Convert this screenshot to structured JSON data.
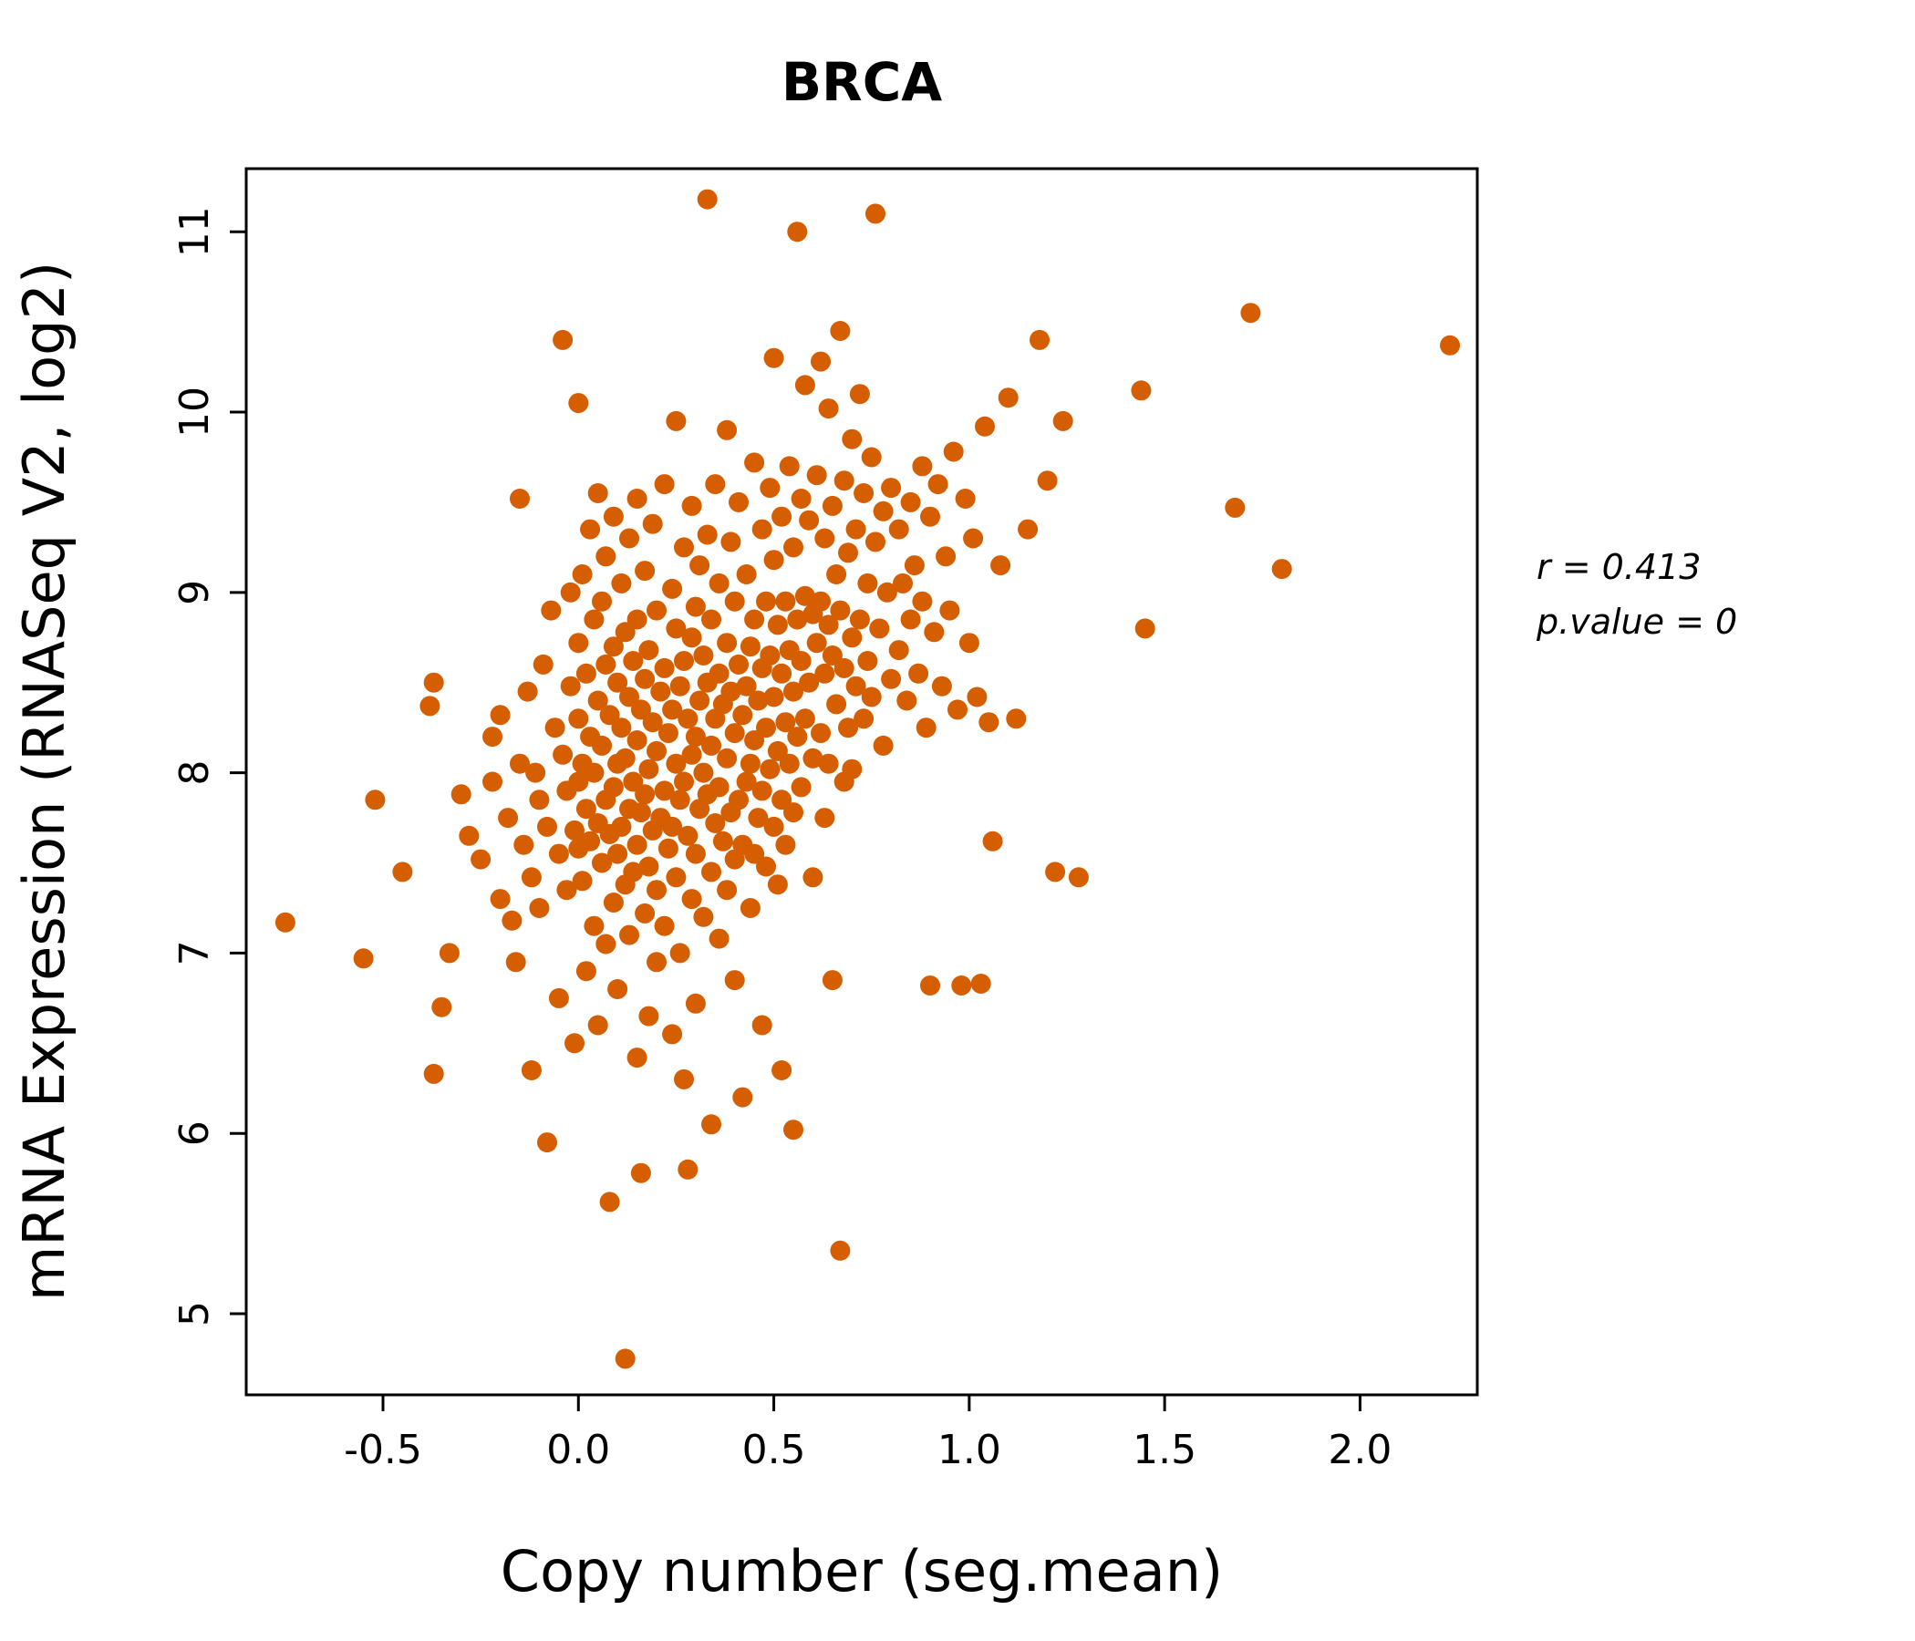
{
  "chart_data": {
    "type": "scatter",
    "title": "BRCA",
    "xlabel": "Copy number (seg.mean)",
    "ylabel": "mRNA Expression (RNASeq V2, log2)",
    "xlim": [
      -0.85,
      2.3
    ],
    "ylim": [
      4.55,
      11.35
    ],
    "x_ticks": [
      -0.5,
      0.0,
      0.5,
      1.0,
      1.5,
      2.0
    ],
    "x_tick_labels": [
      "-0.5",
      "0.0",
      "0.5",
      "1.0",
      "1.5",
      "2.0"
    ],
    "y_ticks": [
      5,
      6,
      7,
      8,
      9,
      10,
      11
    ],
    "y_tick_labels": [
      "5",
      "6",
      "7",
      "8",
      "9",
      "10",
      "11"
    ],
    "grid": false,
    "legend": "none",
    "point_color": "#D55E00",
    "title_color": "#D55E00",
    "annotations": [
      "r = 0.413",
      "p.value = 0"
    ],
    "stats": {
      "r": 0.413,
      "p_value": 0
    },
    "points": [
      [
        -0.75,
        7.17
      ],
      [
        -0.55,
        6.97
      ],
      [
        -0.52,
        7.85
      ],
      [
        -0.45,
        7.45
      ],
      [
        -0.38,
        8.37
      ],
      [
        -0.37,
        8.5
      ],
      [
        -0.37,
        6.33
      ],
      [
        -0.35,
        6.7
      ],
      [
        -0.33,
        7.0
      ],
      [
        -0.3,
        7.88
      ],
      [
        -0.28,
        7.65
      ],
      [
        -0.25,
        7.52
      ],
      [
        -0.22,
        8.2
      ],
      [
        -0.22,
        7.95
      ],
      [
        -0.2,
        8.32
      ],
      [
        -0.2,
        7.3
      ],
      [
        -0.18,
        7.75
      ],
      [
        -0.17,
        7.18
      ],
      [
        -0.16,
        6.95
      ],
      [
        -0.15,
        9.52
      ],
      [
        -0.15,
        8.05
      ],
      [
        -0.14,
        7.6
      ],
      [
        -0.13,
        8.45
      ],
      [
        -0.12,
        7.42
      ],
      [
        -0.12,
        6.35
      ],
      [
        -0.11,
        8.0
      ],
      [
        -0.1,
        7.85
      ],
      [
        -0.1,
        7.25
      ],
      [
        -0.09,
        8.6
      ],
      [
        -0.08,
        7.7
      ],
      [
        -0.08,
        5.95
      ],
      [
        -0.07,
        8.9
      ],
      [
        -0.06,
        8.25
      ],
      [
        -0.05,
        7.55
      ],
      [
        -0.05,
        6.75
      ],
      [
        -0.04,
        10.4
      ],
      [
        -0.04,
        8.1
      ],
      [
        -0.03,
        7.9
      ],
      [
        -0.03,
        7.35
      ],
      [
        -0.02,
        9.0
      ],
      [
        -0.02,
        8.48
      ],
      [
        -0.01,
        7.68
      ],
      [
        -0.01,
        6.5
      ],
      [
        0.0,
        10.05
      ],
      [
        0.0,
        8.72
      ],
      [
        0.0,
        8.3
      ],
      [
        0.0,
        7.95
      ],
      [
        0.0,
        7.58
      ],
      [
        0.01,
        9.1
      ],
      [
        0.01,
        8.05
      ],
      [
        0.01,
        7.4
      ],
      [
        0.02,
        8.55
      ],
      [
        0.02,
        7.8
      ],
      [
        0.02,
        6.9
      ],
      [
        0.03,
        9.35
      ],
      [
        0.03,
        8.2
      ],
      [
        0.03,
        7.62
      ],
      [
        0.04,
        8.85
      ],
      [
        0.04,
        8.0
      ],
      [
        0.04,
        7.15
      ],
      [
        0.05,
        9.55
      ],
      [
        0.05,
        8.4
      ],
      [
        0.05,
        7.72
      ],
      [
        0.05,
        6.6
      ],
      [
        0.06,
        8.95
      ],
      [
        0.06,
        8.15
      ],
      [
        0.06,
        7.5
      ],
      [
        0.07,
        9.2
      ],
      [
        0.07,
        8.6
      ],
      [
        0.07,
        7.85
      ],
      [
        0.07,
        7.05
      ],
      [
        0.08,
        8.32
      ],
      [
        0.08,
        7.66
      ],
      [
        0.08,
        5.62
      ],
      [
        0.09,
        9.42
      ],
      [
        0.09,
        8.7
      ],
      [
        0.09,
        7.92
      ],
      [
        0.09,
        7.28
      ],
      [
        0.1,
        8.5
      ],
      [
        0.1,
        8.05
      ],
      [
        0.1,
        7.55
      ],
      [
        0.1,
        6.8
      ],
      [
        0.11,
        9.05
      ],
      [
        0.11,
        8.25
      ],
      [
        0.11,
        7.7
      ],
      [
        0.12,
        8.78
      ],
      [
        0.12,
        8.08
      ],
      [
        0.12,
        7.38
      ],
      [
        0.12,
        4.75
      ],
      [
        0.13,
        9.3
      ],
      [
        0.13,
        8.42
      ],
      [
        0.13,
        7.8
      ],
      [
        0.13,
        7.1
      ],
      [
        0.14,
        8.62
      ],
      [
        0.14,
        7.95
      ],
      [
        0.14,
        7.45
      ],
      [
        0.15,
        9.52
      ],
      [
        0.15,
        8.85
      ],
      [
        0.15,
        8.18
      ],
      [
        0.15,
        7.6
      ],
      [
        0.15,
        6.42
      ],
      [
        0.16,
        8.35
      ],
      [
        0.16,
        7.78
      ],
      [
        0.16,
        5.78
      ],
      [
        0.17,
        9.12
      ],
      [
        0.17,
        8.52
      ],
      [
        0.17,
        7.88
      ],
      [
        0.17,
        7.22
      ],
      [
        0.18,
        8.68
      ],
      [
        0.18,
        8.02
      ],
      [
        0.18,
        7.48
      ],
      [
        0.18,
        6.65
      ],
      [
        0.19,
        9.38
      ],
      [
        0.19,
        8.28
      ],
      [
        0.19,
        7.68
      ],
      [
        0.2,
        8.9
      ],
      [
        0.2,
        8.12
      ],
      [
        0.2,
        7.35
      ],
      [
        0.2,
        6.95
      ],
      [
        0.21,
        8.45
      ],
      [
        0.21,
        7.75
      ],
      [
        0.22,
        9.6
      ],
      [
        0.22,
        8.58
      ],
      [
        0.22,
        7.9
      ],
      [
        0.22,
        7.15
      ],
      [
        0.23,
        8.22
      ],
      [
        0.23,
        7.58
      ],
      [
        0.24,
        9.02
      ],
      [
        0.24,
        8.35
      ],
      [
        0.24,
        7.7
      ],
      [
        0.24,
        6.55
      ],
      [
        0.25,
        9.95
      ],
      [
        0.25,
        8.8
      ],
      [
        0.25,
        8.05
      ],
      [
        0.25,
        7.42
      ],
      [
        0.26,
        8.48
      ],
      [
        0.26,
        7.85
      ],
      [
        0.26,
        7.0
      ],
      [
        0.27,
        9.25
      ],
      [
        0.27,
        8.62
      ],
      [
        0.27,
        7.95
      ],
      [
        0.27,
        6.3
      ],
      [
        0.28,
        8.3
      ],
      [
        0.28,
        7.65
      ],
      [
        0.28,
        5.8
      ],
      [
        0.29,
        9.48
      ],
      [
        0.29,
        8.75
      ],
      [
        0.29,
        8.1
      ],
      [
        0.29,
        7.3
      ],
      [
        0.3,
        8.92
      ],
      [
        0.3,
        8.2
      ],
      [
        0.3,
        7.55
      ],
      [
        0.3,
        6.72
      ],
      [
        0.31,
        9.15
      ],
      [
        0.31,
        8.4
      ],
      [
        0.31,
        7.8
      ],
      [
        0.32,
        8.65
      ],
      [
        0.32,
        8.0
      ],
      [
        0.32,
        7.2
      ],
      [
        0.33,
        11.18
      ],
      [
        0.33,
        9.32
      ],
      [
        0.33,
        8.5
      ],
      [
        0.33,
        7.88
      ],
      [
        0.34,
        8.85
      ],
      [
        0.34,
        8.15
      ],
      [
        0.34,
        7.45
      ],
      [
        0.34,
        6.05
      ],
      [
        0.35,
        9.6
      ],
      [
        0.35,
        8.3
      ],
      [
        0.35,
        7.72
      ],
      [
        0.36,
        9.05
      ],
      [
        0.36,
        8.55
      ],
      [
        0.36,
        7.92
      ],
      [
        0.36,
        7.08
      ],
      [
        0.37,
        8.38
      ],
      [
        0.37,
        7.62
      ],
      [
        0.38,
        9.9
      ],
      [
        0.38,
        8.72
      ],
      [
        0.38,
        8.08
      ],
      [
        0.38,
        7.35
      ],
      [
        0.39,
        9.28
      ],
      [
        0.39,
        8.45
      ],
      [
        0.39,
        7.78
      ],
      [
        0.4,
        8.95
      ],
      [
        0.4,
        8.22
      ],
      [
        0.4,
        7.52
      ],
      [
        0.4,
        6.85
      ],
      [
        0.41,
        9.5
      ],
      [
        0.41,
        8.6
      ],
      [
        0.41,
        7.85
      ],
      [
        0.42,
        8.32
      ],
      [
        0.42,
        7.6
      ],
      [
        0.42,
        6.2
      ],
      [
        0.43,
        9.1
      ],
      [
        0.43,
        8.48
      ],
      [
        0.43,
        7.95
      ],
      [
        0.44,
        8.7
      ],
      [
        0.44,
        8.05
      ],
      [
        0.44,
        7.25
      ],
      [
        0.45,
        9.72
      ],
      [
        0.45,
        8.85
      ],
      [
        0.45,
        8.18
      ],
      [
        0.45,
        7.55
      ],
      [
        0.46,
        8.4
      ],
      [
        0.46,
        7.75
      ],
      [
        0.47,
        9.35
      ],
      [
        0.47,
        8.58
      ],
      [
        0.47,
        7.9
      ],
      [
        0.47,
        6.6
      ],
      [
        0.48,
        8.95
      ],
      [
        0.48,
        8.25
      ],
      [
        0.48,
        7.48
      ],
      [
        0.49,
        9.58
      ],
      [
        0.49,
        8.65
      ],
      [
        0.49,
        8.02
      ],
      [
        0.5,
        10.3
      ],
      [
        0.5,
        9.18
      ],
      [
        0.5,
        8.42
      ],
      [
        0.5,
        7.7
      ],
      [
        0.51,
        8.82
      ],
      [
        0.51,
        8.12
      ],
      [
        0.51,
        7.38
      ],
      [
        0.52,
        9.42
      ],
      [
        0.52,
        8.55
      ],
      [
        0.52,
        7.85
      ],
      [
        0.52,
        6.35
      ],
      [
        0.53,
        8.95
      ],
      [
        0.53,
        8.28
      ],
      [
        0.53,
        7.6
      ],
      [
        0.54,
        9.7
      ],
      [
        0.54,
        8.68
      ],
      [
        0.54,
        8.05
      ],
      [
        0.55,
        9.25
      ],
      [
        0.55,
        8.45
      ],
      [
        0.55,
        7.78
      ],
      [
        0.55,
        6.02
      ],
      [
        0.56,
        11.0
      ],
      [
        0.56,
        8.85
      ],
      [
        0.56,
        8.2
      ],
      [
        0.57,
        9.52
      ],
      [
        0.57,
        8.62
      ],
      [
        0.57,
        7.92
      ],
      [
        0.58,
        10.15
      ],
      [
        0.58,
        8.98
      ],
      [
        0.58,
        8.3
      ],
      [
        0.59,
        9.4
      ],
      [
        0.59,
        8.5
      ],
      [
        0.6,
        8.88
      ],
      [
        0.6,
        8.08
      ],
      [
        0.6,
        7.42
      ],
      [
        0.61,
        9.65
      ],
      [
        0.61,
        8.72
      ],
      [
        0.62,
        10.28
      ],
      [
        0.62,
        8.95
      ],
      [
        0.62,
        8.22
      ],
      [
        0.63,
        9.3
      ],
      [
        0.63,
        8.55
      ],
      [
        0.63,
        7.75
      ],
      [
        0.64,
        10.02
      ],
      [
        0.64,
        8.82
      ],
      [
        0.64,
        8.05
      ],
      [
        0.65,
        9.48
      ],
      [
        0.65,
        8.65
      ],
      [
        0.65,
        6.85
      ],
      [
        0.66,
        9.1
      ],
      [
        0.66,
        8.38
      ],
      [
        0.67,
        10.45
      ],
      [
        0.67,
        8.9
      ],
      [
        0.67,
        5.35
      ],
      [
        0.68,
        9.62
      ],
      [
        0.68,
        8.58
      ],
      [
        0.68,
        7.95
      ],
      [
        0.69,
        9.22
      ],
      [
        0.69,
        8.25
      ],
      [
        0.7,
        9.85
      ],
      [
        0.7,
        8.75
      ],
      [
        0.7,
        8.02
      ],
      [
        0.71,
        9.35
      ],
      [
        0.71,
        8.48
      ],
      [
        0.72,
        10.1
      ],
      [
        0.72,
        8.85
      ],
      [
        0.73,
        9.55
      ],
      [
        0.73,
        8.3
      ],
      [
        0.74,
        9.05
      ],
      [
        0.74,
        8.62
      ],
      [
        0.75,
        9.75
      ],
      [
        0.75,
        8.42
      ],
      [
        0.76,
        11.1
      ],
      [
        0.76,
        9.28
      ],
      [
        0.77,
        8.8
      ],
      [
        0.78,
        9.45
      ],
      [
        0.78,
        8.15
      ],
      [
        0.79,
        9.0
      ],
      [
        0.8,
        9.58
      ],
      [
        0.8,
        8.52
      ],
      [
        0.82,
        9.35
      ],
      [
        0.82,
        8.68
      ],
      [
        0.83,
        9.05
      ],
      [
        0.84,
        8.4
      ],
      [
        0.85,
        9.5
      ],
      [
        0.85,
        8.85
      ],
      [
        0.86,
        9.15
      ],
      [
        0.87,
        8.55
      ],
      [
        0.88,
        9.7
      ],
      [
        0.88,
        8.95
      ],
      [
        0.89,
        8.25
      ],
      [
        0.9,
        9.42
      ],
      [
        0.9,
        6.82
      ],
      [
        0.91,
        8.78
      ],
      [
        0.92,
        9.6
      ],
      [
        0.93,
        8.48
      ],
      [
        0.94,
        9.2
      ],
      [
        0.95,
        8.9
      ],
      [
        0.96,
        9.78
      ],
      [
        0.97,
        8.35
      ],
      [
        0.98,
        6.82
      ],
      [
        0.99,
        9.52
      ],
      [
        1.0,
        8.72
      ],
      [
        1.01,
        9.3
      ],
      [
        1.02,
        8.42
      ],
      [
        1.03,
        6.83
      ],
      [
        1.04,
        9.92
      ],
      [
        1.05,
        8.28
      ],
      [
        1.06,
        7.62
      ],
      [
        1.08,
        9.15
      ],
      [
        1.1,
        10.08
      ],
      [
        1.12,
        8.3
      ],
      [
        1.15,
        9.35
      ],
      [
        1.18,
        10.4
      ],
      [
        1.2,
        9.62
      ],
      [
        1.22,
        7.45
      ],
      [
        1.24,
        9.95
      ],
      [
        1.28,
        7.42
      ],
      [
        1.44,
        10.12
      ],
      [
        1.45,
        8.8
      ],
      [
        1.68,
        9.47
      ],
      [
        1.72,
        10.55
      ],
      [
        1.8,
        9.13
      ],
      [
        2.23,
        10.37
      ]
    ]
  }
}
